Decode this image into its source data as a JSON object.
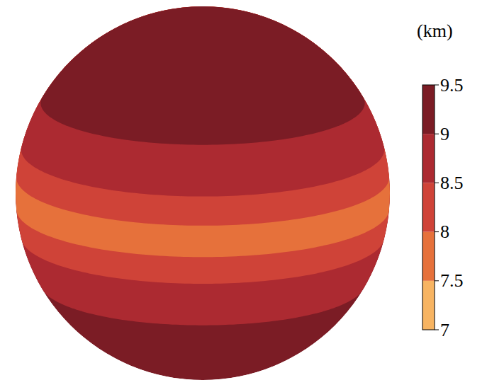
{
  "chart_data": {
    "type": "contour",
    "bins": [
      -90,
      -30,
      -14,
      -5,
      5,
      14,
      30,
      90
    ],
    "values": [
      9.25,
      8.75,
      8.25,
      7.75,
      8.25,
      8.75,
      9.25
    ],
    "colorbar": {
      "title": "(km)",
      "range": [
        7,
        9.5
      ],
      "ticks": [
        7,
        7.5,
        8,
        8.5,
        9,
        9.5
      ],
      "colors": [
        "#f7b462",
        "#e6713b",
        "#cf4338",
        "#ac2a31",
        "#7b1c25"
      ]
    }
  }
}
